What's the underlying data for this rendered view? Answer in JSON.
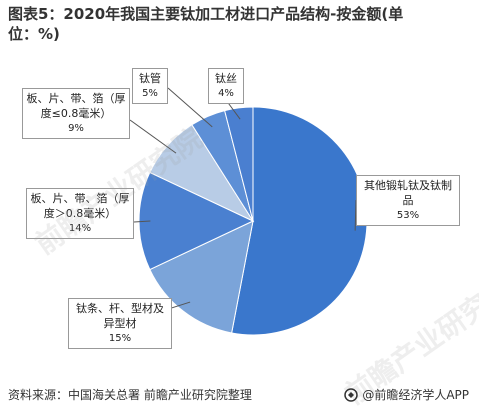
{
  "title": "图表5：2020年我国主要钛加工材进口产品结构-按金额(单位：%)",
  "source": "资料来源：中国海关总署 前瞻产业研究院整理",
  "brand": "@前瞻经济学人APP",
  "watermark": "前瞻产业研究院",
  "colors": {
    "slice_1": "#3a77cc",
    "slice_2": "#7ba4d9",
    "slice_3": "#4a80d0",
    "slice_4": "#b8cce6",
    "slice_5": "#5d8fd6",
    "slice_6": "#4a7fd0"
  },
  "chart_data": {
    "type": "pie",
    "title": "图表5：2020年我国主要钛加工材进口产品结构-按金额(单位：%)",
    "slices": [
      {
        "label": "其他锻轧钛及钛制品",
        "value": 53,
        "pct_text": "53%"
      },
      {
        "label": "钛条、杆、型材及异型材",
        "value": 15,
        "pct_text": "15%"
      },
      {
        "label": "板、片、带、箔（厚度＞0.8毫米）",
        "value": 14,
        "pct_text": "14%"
      },
      {
        "label": "板、片、带、箔（厚度≤0.8毫米）",
        "value": 9,
        "pct_text": "9%"
      },
      {
        "label": "钛管",
        "value": 5,
        "pct_text": "5%"
      },
      {
        "label": "钛丝",
        "value": 4,
        "pct_text": "4%"
      }
    ]
  }
}
